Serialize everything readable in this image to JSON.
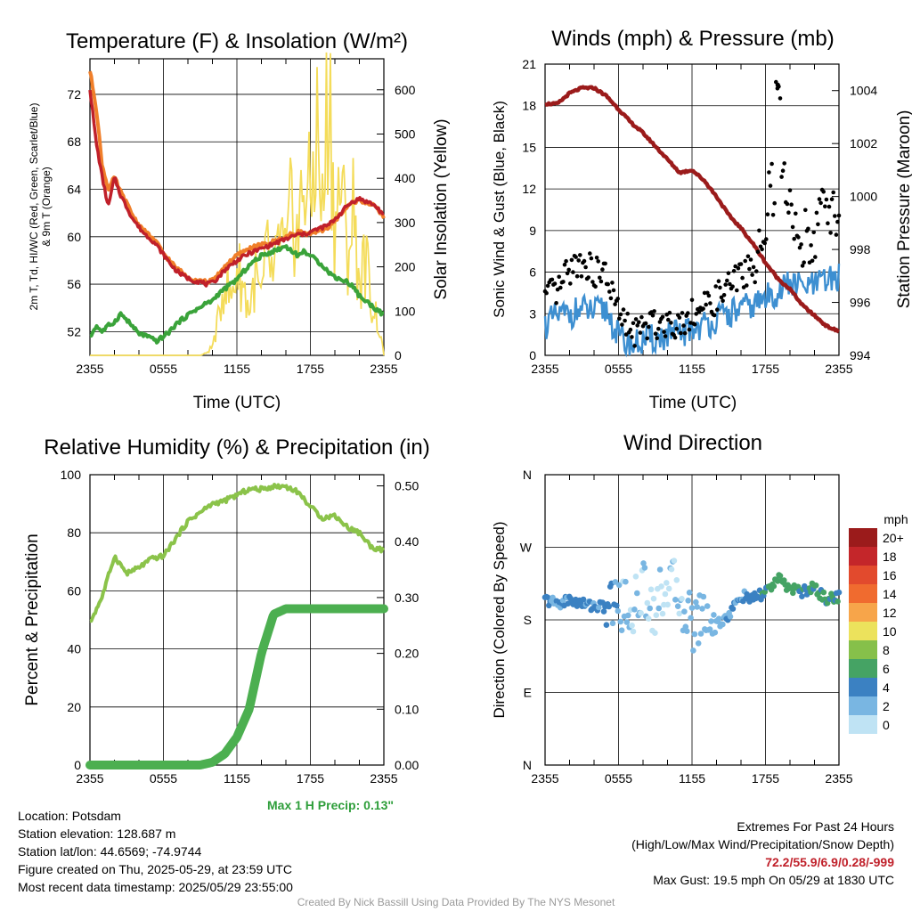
{
  "chart_data": [
    {
      "type": "line",
      "title": "Temperature (F) & Insolation (W/m²)",
      "xlabel": "Time (UTC)",
      "ylabel": "2m T, Td, HI/WC (Red, Green, Scarlet/Blue) & 9m T (Orange)",
      "ylabel_line1": "2m T, Td, HI/WC (Red, Green, Scarlet/Blue)",
      "ylabel_line2": "& 9m T (Orange)",
      "ylabel_right": "Solar Insolation (Yellow)",
      "x_ticks": [
        "2355",
        "0555",
        "1155",
        "1755",
        "2355"
      ],
      "ylim": [
        50,
        75
      ],
      "yticks": [
        52,
        56,
        60,
        64,
        68,
        72
      ],
      "ylim_right": [
        0,
        670
      ],
      "yticks_right": [
        0,
        100,
        200,
        300,
        400,
        500,
        600
      ],
      "x_hours": [
        0,
        0.5,
        1,
        1.5,
        2,
        2.5,
        3,
        3.5,
        4,
        4.5,
        5,
        5.5,
        6,
        6.5,
        7,
        7.5,
        8,
        8.5,
        9,
        9.5,
        10,
        10.5,
        11,
        11.5,
        12,
        12.5,
        13,
        13.5,
        14,
        14.5,
        15,
        15.5,
        16,
        16.5,
        17,
        17.5,
        18,
        18.5,
        19,
        19.5,
        20,
        20.5,
        21,
        21.5,
        22,
        22.5,
        23,
        23.5,
        24
      ],
      "series": [
        {
          "name": "2m T",
          "color": "#c0202a",
          "values": [
            72.5,
            68,
            65,
            62.5,
            65,
            63.5,
            62.5,
            61.5,
            60.8,
            60.2,
            59.8,
            59.2,
            58.5,
            57.8,
            57.2,
            56.8,
            56.5,
            56.3,
            56.2,
            56.0,
            56.1,
            56.6,
            57.2,
            57.6,
            58.0,
            58.3,
            58.6,
            58.8,
            59.0,
            59.2,
            59.4,
            59.6,
            59.8,
            60.0,
            60.2,
            60.2,
            60.4,
            60.6,
            60.8,
            61.0,
            61.5,
            62.0,
            62.6,
            63.0,
            63.2,
            63.0,
            62.8,
            62.4,
            61.8
          ]
        },
        {
          "name": "9m T",
          "color": "#f07f2a",
          "values": [
            74,
            71,
            66,
            64,
            65,
            63.8,
            62.8,
            61.8,
            61.0,
            60.4,
            60.0,
            59.4,
            58.6,
            58.0,
            57.4,
            57.0,
            56.6,
            56.4,
            56.3,
            56.2,
            56.3,
            56.8,
            57.5,
            58.0,
            58.4,
            58.7,
            59.0,
            59.2,
            59.3,
            59.4,
            59.6,
            59.8,
            60.0,
            60.2,
            60.4,
            60.3,
            60.2,
            60.4,
            60.6,
            60.8,
            61.4,
            61.9,
            62.5,
            62.9,
            63.1,
            62.9,
            62.7,
            62.3,
            61.7
          ]
        },
        {
          "name": "Td",
          "color": "#3aa33a",
          "values": [
            51.5,
            52.5,
            52.0,
            52.5,
            52.8,
            53.5,
            53.0,
            52.4,
            51.8,
            51.7,
            51.4,
            51.2,
            51.6,
            52.0,
            52.6,
            53.0,
            53.4,
            53.8,
            54.0,
            54.4,
            54.6,
            55.2,
            55.6,
            56.0,
            56.4,
            57.0,
            57.6,
            58.0,
            58.4,
            58.6,
            58.8,
            59.0,
            59.2,
            58.8,
            58.4,
            58.8,
            58.4,
            58.0,
            57.6,
            57.0,
            56.6,
            56.4,
            56.2,
            55.8,
            55.0,
            54.6,
            54.2,
            53.8,
            53.4
          ]
        },
        {
          "name": "Solar Insolation",
          "color": "#f4dc5a",
          "values": [
            0,
            0,
            0,
            0,
            0,
            0,
            0,
            0,
            0,
            0,
            0,
            0,
            0,
            0,
            0,
            0,
            0,
            0,
            0,
            5,
            20,
            80,
            180,
            120,
            200,
            160,
            100,
            180,
            120,
            240,
            150,
            280,
            200,
            350,
            250,
            420,
            330,
            520,
            300,
            640,
            280,
            400,
            220,
            330,
            160,
            220,
            120,
            80,
            0
          ]
        }
      ]
    },
    {
      "type": "scatter",
      "title": "Winds (mph) & Pressure (mb)",
      "xlabel": "Time (UTC)",
      "ylabel": "Sonic Wind & Gust (Blue, Black)",
      "ylabel_right": "Station Pressure (Maroon)",
      "x_ticks": [
        "2355",
        "0555",
        "1155",
        "1755",
        "2355"
      ],
      "ylim": [
        0,
        21
      ],
      "yticks": [
        0,
        3,
        6,
        9,
        12,
        15,
        18,
        21
      ],
      "ylim_right": [
        994,
        1005
      ],
      "yticks_right": [
        994,
        996,
        998,
        1000,
        1002,
        1004
      ],
      "pressure": {
        "name": "Station Pressure",
        "color": "#9b1b1b",
        "x_hours": [
          0,
          1,
          2,
          3,
          4,
          5,
          6,
          7,
          8,
          9,
          10,
          11,
          12,
          13,
          14,
          15,
          16,
          17,
          18,
          19,
          20,
          21,
          22,
          23,
          24
        ],
        "values": [
          1003.5,
          1003.5,
          1003.9,
          1004.1,
          1004.1,
          1003.8,
          1003.3,
          1002.8,
          1002.4,
          1001.9,
          1001.4,
          1000.9,
          1001.0,
          1000.6,
          1000.0,
          999.3,
          998.8,
          998.2,
          997.5,
          996.9,
          996.5,
          995.9,
          995.5,
          995.1,
          994.9
        ]
      },
      "wind": {
        "name": "Sonic Wind",
        "color": "#3d8fd1",
        "x_hours": [
          0,
          1,
          2,
          3,
          4,
          5,
          6,
          7,
          8,
          9,
          10,
          11,
          12,
          13,
          14,
          15,
          16,
          17,
          18,
          19,
          20,
          21,
          22,
          23,
          24
        ],
        "values": [
          2.2,
          2.8,
          3.0,
          3.3,
          3.1,
          3.3,
          1.3,
          0.7,
          1.0,
          1.2,
          1.4,
          1.5,
          1.9,
          2.2,
          2.6,
          3.0,
          3.3,
          3.6,
          4.1,
          4.6,
          5.2,
          4.9,
          5.0,
          5.4,
          5.6
        ]
      },
      "gust": {
        "name": "Gust",
        "color": "#000000",
        "x_hours": [
          0,
          1,
          2,
          3,
          4,
          5,
          6,
          7,
          8,
          9,
          10,
          11,
          12,
          13,
          14,
          15,
          16,
          17,
          18,
          19,
          20,
          21,
          22,
          23,
          24
        ],
        "values": [
          4.2,
          4.5,
          6.2,
          6.8,
          6.0,
          5.8,
          3.0,
          1.6,
          2.0,
          2.3,
          2.5,
          2.3,
          3.1,
          3.4,
          4.1,
          5.0,
          5.8,
          6.5,
          8.2,
          19.5,
          10.2,
          8.4,
          8.9,
          11.0,
          9.8
        ]
      }
    },
    {
      "type": "line",
      "title": "Relative Humidity (%) & Precipitation (in)",
      "ylabel": "Percent & Precipitation",
      "x_ticks": [
        "2355",
        "0555",
        "1155",
        "1755",
        "2355"
      ],
      "ylim": [
        0,
        100
      ],
      "yticks": [
        0,
        20,
        40,
        60,
        80,
        100
      ],
      "ylim_right": [
        0,
        0.52
      ],
      "yticks_right": [
        "0.00",
        "0.10",
        "0.20",
        "0.30",
        "0.40",
        "0.50"
      ],
      "x_hours": [
        0,
        1,
        2,
        3,
        4,
        5,
        6,
        7,
        8,
        9,
        10,
        11,
        12,
        13,
        14,
        15,
        16,
        17,
        18,
        19,
        20,
        21,
        22,
        23,
        24
      ],
      "series": [
        {
          "name": "Relative Humidity",
          "color": "#8bc34a",
          "values": [
            49,
            58,
            72,
            66,
            68,
            71,
            72,
            78,
            84,
            87,
            90,
            91,
            93,
            95,
            95,
            96,
            96,
            94,
            89,
            85,
            86,
            82,
            80,
            75,
            74
          ]
        },
        {
          "name": "Precipitation",
          "color": "#4caf50",
          "values": [
            0,
            0,
            0,
            0,
            0,
            0,
            0,
            0,
            0,
            0,
            0.005,
            0.02,
            0.05,
            0.1,
            0.2,
            0.27,
            0.28,
            0.28,
            0.28,
            0.28,
            0.28,
            0.28,
            0.28,
            0.28,
            0.28
          ]
        }
      ],
      "note": "Max 1 H Precip: 0.13\""
    },
    {
      "type": "scatter",
      "title": "Wind Direction",
      "ylabel": "Direction (Colored By Speed)",
      "x_ticks": [
        "2355",
        "0555",
        "1155",
        "1755",
        "2355"
      ],
      "y_ticks": [
        "N",
        "E",
        "S",
        "W",
        "N"
      ],
      "ylim": [
        0,
        360
      ],
      "legend_title": "mph",
      "legend_labels": [
        "20+",
        "18",
        "16",
        "14",
        "12",
        "10",
        "8",
        "6",
        "4",
        "2",
        "0"
      ],
      "legend_colors": [
        "#9b1b1b",
        "#c4262a",
        "#e24a2d",
        "#f06b2f",
        "#f7a54a",
        "#ece25c",
        "#86c04a",
        "#45a364",
        "#3b81c2",
        "#79b6e2",
        "#bfe3f4"
      ],
      "x_hours": [
        0,
        1,
        2,
        3,
        4,
        5,
        6,
        7,
        8,
        9,
        10,
        11,
        12,
        13,
        14,
        15,
        16,
        17,
        18,
        19,
        20,
        21,
        22,
        23,
        24
      ],
      "direction_deg": [
        205,
        200,
        205,
        200,
        198,
        195,
        205,
        190,
        220,
        195,
        230,
        210,
        175,
        190,
        175,
        185,
        210,
        205,
        215,
        230,
        220,
        215,
        220,
        205,
        210
      ],
      "speed_mph": [
        4,
        2,
        4,
        4,
        3,
        4,
        2,
        1,
        1,
        1,
        1,
        1,
        2,
        2,
        2,
        3,
        3,
        4,
        5,
        6,
        6,
        5,
        5,
        5,
        5
      ]
    }
  ],
  "info": {
    "location": "Location: Potsdam",
    "elevation": "Station elevation: 128.687 m",
    "latlon": "Station lat/lon: 44.6569; -74.9744",
    "created": "Figure created on Thu, 2025-05-29, at 23:59 UTC",
    "recent": "Most recent data timestamp: 2025/05/29 23:55:00",
    "extremes_title": "Extremes For Past 24 Hours",
    "extremes_sub": "(High/Low/Max Wind/Precipitation/Snow Depth)",
    "extremes_values": "72.2/55.9/6.9/0.28/-999",
    "max_gust": "Max Gust: 19.5 mph On 05/29 at 1830 UTC",
    "credit": "Created By Nick Bassill Using Data Provided By The NYS Mesonet"
  }
}
